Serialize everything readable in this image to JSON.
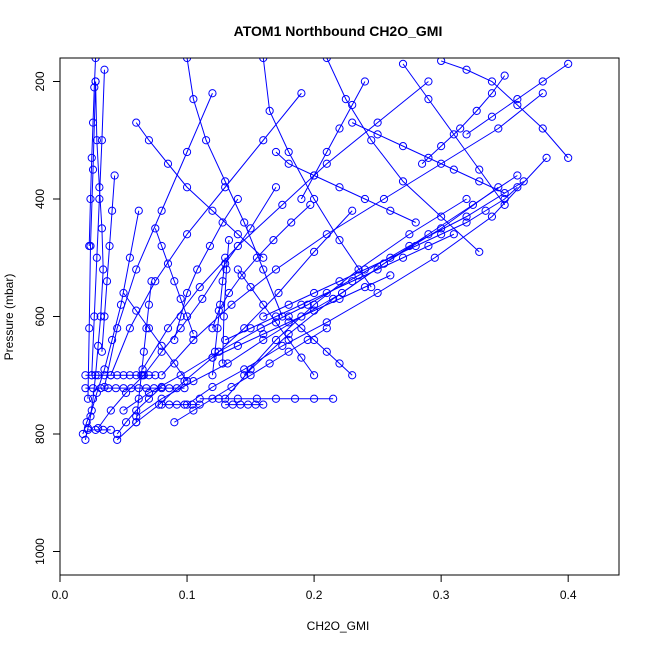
{
  "chart_data": {
    "type": "scatter",
    "title": "ATOM1 Northbound CH2O_GMI",
    "xlabel": "CH2O_GMI",
    "ylabel": "Pressure (mbar)",
    "xlim": [
      0,
      0.44
    ],
    "ylim": [
      1040,
      160
    ],
    "y_reversed": true,
    "grid": false,
    "legend": "none",
    "x_ticks": [
      "0.0",
      "0.1",
      "0.2",
      "0.3",
      "0.4"
    ],
    "x_tick_values": [
      0,
      0.1,
      0.2,
      0.3,
      0.4
    ],
    "y_ticks": [
      "200",
      "400",
      "600",
      "800",
      "1000"
    ],
    "y_tick_values": [
      200,
      400,
      600,
      800,
      1000
    ],
    "series_color": "#0000ff",
    "marker": "open-circle",
    "series": [
      {
        "x": [
          0.02,
          0.022,
          0.024,
          0.026,
          0.028,
          0.03,
          0.032,
          0.034,
          0.033,
          0.031,
          0.029,
          0.028
        ],
        "y": [
          810,
          790,
          770,
          740,
          700,
          650,
          600,
          520,
          450,
          380,
          300,
          200
        ]
      },
      {
        "x": [
          0.018,
          0.021,
          0.025,
          0.029,
          0.035,
          0.041,
          0.048,
          0.055,
          0.062
        ],
        "y": [
          800,
          780,
          760,
          730,
          690,
          640,
          580,
          500,
          420
        ]
      },
      {
        "x": [
          0.03,
          0.04,
          0.052,
          0.066,
          0.08,
          0.095,
          0.112,
          0.13,
          0.15,
          0.17
        ],
        "y": [
          790,
          760,
          730,
          700,
          660,
          620,
          570,
          510,
          450,
          380
        ]
      },
      {
        "x": [
          0.045,
          0.06,
          0.078,
          0.098,
          0.12,
          0.145,
          0.172,
          0.2,
          0.23
        ],
        "y": [
          810,
          780,
          750,
          710,
          670,
          620,
          560,
          490,
          420
        ]
      },
      {
        "x": [
          0.06,
          0.08,
          0.105,
          0.132,
          0.16,
          0.19,
          0.222,
          0.255,
          0.29,
          0.325,
          0.36
        ],
        "y": [
          770,
          740,
          710,
          680,
          640,
          600,
          560,
          510,
          460,
          410,
          360
        ]
      },
      {
        "x": [
          0.05,
          0.07,
          0.095,
          0.125,
          0.158,
          0.195,
          0.235,
          0.275,
          0.32,
          0.365
        ],
        "y": [
          760,
          730,
          700,
          660,
          620,
          580,
          530,
          480,
          430,
          370
        ]
      },
      {
        "x": [
          0.1,
          0.12,
          0.145,
          0.175,
          0.21,
          0.25,
          0.295,
          0.34,
          0.383
        ],
        "y": [
          750,
          720,
          690,
          650,
          610,
          560,
          500,
          430,
          330
        ]
      },
      {
        "x": [
          0.025,
          0.027,
          0.029,
          0.031,
          0.033,
          0.035
        ],
        "y": [
          700,
          600,
          500,
          400,
          300,
          180
        ]
      },
      {
        "x": [
          0.022,
          0.023,
          0.024,
          0.026,
          0.028
        ],
        "y": [
          740,
          620,
          480,
          350,
          200
        ]
      },
      {
        "x": [
          0.035,
          0.045,
          0.06,
          0.08,
          0.1,
          0.12
        ],
        "y": [
          720,
          620,
          520,
          420,
          320,
          220
        ]
      },
      {
        "x": [
          0.04,
          0.055,
          0.075,
          0.1,
          0.13,
          0.16,
          0.19
        ],
        "y": [
          700,
          620,
          540,
          460,
          380,
          300,
          220
        ]
      },
      {
        "x": [
          0.065,
          0.085,
          0.11,
          0.14,
          0.175,
          0.21,
          0.25,
          0.29
        ],
        "y": [
          690,
          620,
          550,
          480,
          410,
          340,
          270,
          200
        ]
      },
      {
        "x": [
          0.08,
          0.105,
          0.135,
          0.17,
          0.21,
          0.255,
          0.3,
          0.345,
          0.38
        ],
        "y": [
          700,
          640,
          580,
          520,
          460,
          400,
          340,
          280,
          220
        ]
      },
      {
        "x": [
          0.13,
          0.15,
          0.18,
          0.215,
          0.255,
          0.3,
          0.345
        ],
        "y": [
          740,
          690,
          630,
          570,
          510,
          450,
          380
        ]
      },
      {
        "x": [
          0.145,
          0.17,
          0.2,
          0.235,
          0.275,
          0.32
        ],
        "y": [
          700,
          640,
          580,
          520,
          460,
          400
        ]
      },
      {
        "x": [
          0.11,
          0.125,
          0.14,
          0.155,
          0.17,
          0.185,
          0.2,
          0.215
        ],
        "y": [
          740,
          740,
          740,
          740,
          740,
          740,
          740,
          740
        ]
      },
      {
        "x": [
          0.02,
          0.025,
          0.03,
          0.035,
          0.04,
          0.045,
          0.05,
          0.055,
          0.06,
          0.065,
          0.07,
          0.075
        ],
        "y": [
          700,
          700,
          700,
          700,
          700,
          700,
          700,
          700,
          700,
          700,
          700,
          700
        ]
      },
      {
        "x": [
          0.02,
          0.026,
          0.032,
          0.038,
          0.044,
          0.05,
          0.056,
          0.062,
          0.068,
          0.074,
          0.08,
          0.086,
          0.092,
          0.098
        ],
        "y": [
          722,
          722,
          722,
          722,
          722,
          722,
          722,
          722,
          722,
          722,
          722,
          722,
          722,
          722
        ]
      },
      {
        "x": [
          0.08,
          0.086,
          0.092,
          0.098,
          0.104,
          0.11
        ],
        "y": [
          750,
          750,
          750,
          750,
          750,
          750
        ]
      },
      {
        "x": [
          0.13,
          0.136,
          0.142,
          0.148,
          0.154,
          0.16
        ],
        "y": [
          750,
          750,
          750,
          750,
          750,
          750
        ]
      },
      {
        "x": [
          0.022,
          0.028,
          0.034,
          0.04
        ],
        "y": [
          793,
          793,
          793,
          793
        ]
      },
      {
        "x": [
          0.028,
          0.027,
          0.026,
          0.025,
          0.024,
          0.023
        ],
        "y": [
          160,
          210,
          270,
          330,
          400,
          480
        ]
      },
      {
        "x": [
          0.1,
          0.105,
          0.115,
          0.13,
          0.145,
          0.16,
          0.175
        ],
        "y": [
          160,
          230,
          300,
          370,
          440,
          520,
          600
        ]
      },
      {
        "x": [
          0.16,
          0.165,
          0.18,
          0.2,
          0.22,
          0.245
        ],
        "y": [
          160,
          250,
          320,
          400,
          470,
          550
        ]
      },
      {
        "x": [
          0.21,
          0.225,
          0.245,
          0.27,
          0.3,
          0.33
        ],
        "y": [
          160,
          230,
          300,
          370,
          430,
          490
        ]
      },
      {
        "x": [
          0.27,
          0.29,
          0.31,
          0.33,
          0.35
        ],
        "y": [
          170,
          230,
          290,
          350,
          410
        ]
      },
      {
        "x": [
          0.3,
          0.32,
          0.34,
          0.36,
          0.38,
          0.4
        ],
        "y": [
          165,
          180,
          200,
          240,
          280,
          330
        ]
      },
      {
        "x": [
          0.23,
          0.25,
          0.27,
          0.29,
          0.31,
          0.33,
          0.35
        ],
        "y": [
          270,
          290,
          310,
          330,
          350,
          370,
          390
        ]
      },
      {
        "x": [
          0.17,
          0.18,
          0.2,
          0.22,
          0.24,
          0.26,
          0.28
        ],
        "y": [
          320,
          340,
          360,
          380,
          400,
          420,
          440
        ]
      },
      {
        "x": [
          0.06,
          0.07,
          0.085,
          0.1,
          0.12,
          0.14,
          0.16
        ],
        "y": [
          270,
          300,
          340,
          380,
          420,
          460,
          500
        ]
      },
      {
        "x": [
          0.05,
          0.06,
          0.07,
          0.08,
          0.09,
          0.1
        ],
        "y": [
          560,
          590,
          620,
          650,
          680,
          710
        ]
      },
      {
        "x": [
          0.045,
          0.052,
          0.06,
          0.07,
          0.08
        ],
        "y": [
          800,
          780,
          760,
          740,
          720
        ]
      },
      {
        "x": [
          0.133,
          0.131,
          0.129,
          0.128
        ],
        "y": [
          470,
          520,
          600,
          680
        ]
      },
      {
        "x": [
          0.36,
          0.35,
          0.335,
          0.32,
          0.3,
          0.28,
          0.26,
          0.24,
          0.22,
          0.2,
          0.18,
          0.16
        ],
        "y": [
          380,
          400,
          420,
          440,
          460,
          480,
          500,
          520,
          540,
          560,
          580,
          600
        ]
      },
      {
        "x": [
          0.31,
          0.29,
          0.27,
          0.25,
          0.23,
          0.21,
          0.19,
          0.17,
          0.15,
          0.13
        ],
        "y": [
          460,
          480,
          500,
          520,
          540,
          560,
          580,
          600,
          620,
          640
        ]
      },
      {
        "x": [
          0.26,
          0.24,
          0.22,
          0.2,
          0.18,
          0.16,
          0.14,
          0.12
        ],
        "y": [
          530,
          550,
          570,
          590,
          610,
          630,
          650,
          670
        ]
      },
      {
        "x": [
          0.21,
          0.195,
          0.18,
          0.165,
          0.15,
          0.135,
          0.12,
          0.105,
          0.09
        ],
        "y": [
          620,
          640,
          660,
          680,
          700,
          720,
          740,
          760,
          780
        ]
      },
      {
        "x": [
          0.06,
          0.062,
          0.064,
          0.066,
          0.068,
          0.07,
          0.072
        ],
        "y": [
          780,
          740,
          700,
          660,
          620,
          580,
          540
        ]
      },
      {
        "x": [
          0.033,
          0.035,
          0.037,
          0.039,
          0.041,
          0.043
        ],
        "y": [
          660,
          600,
          540,
          480,
          420,
          360
        ]
      },
      {
        "x": [
          0.09,
          0.095,
          0.1,
          0.108,
          0.118,
          0.128,
          0.14
        ],
        "y": [
          640,
          600,
          560,
          520,
          480,
          440,
          400
        ]
      },
      {
        "x": [
          0.12,
          0.125,
          0.133,
          0.143,
          0.155,
          0.168,
          0.182,
          0.197
        ],
        "y": [
          620,
          590,
          560,
          530,
          500,
          470,
          440,
          410
        ]
      },
      {
        "x": [
          0.24,
          0.23,
          0.22,
          0.21,
          0.2,
          0.19
        ],
        "y": [
          200,
          240,
          280,
          320,
          360,
          400
        ]
      },
      {
        "x": [
          0.35,
          0.34,
          0.328,
          0.315,
          0.3,
          0.285
        ],
        "y": [
          190,
          220,
          250,
          280,
          310,
          340
        ]
      },
      {
        "x": [
          0.4,
          0.38,
          0.36,
          0.34,
          0.32
        ],
        "y": [
          170,
          200,
          230,
          260,
          290
        ]
      },
      {
        "x": [
          0.075,
          0.08,
          0.085,
          0.09,
          0.095,
          0.1,
          0.105
        ],
        "y": [
          450,
          480,
          510,
          540,
          570,
          600,
          630
        ]
      },
      {
        "x": [
          0.14,
          0.15,
          0.16,
          0.17,
          0.18,
          0.19,
          0.2
        ],
        "y": [
          520,
          550,
          580,
          610,
          640,
          670,
          700
        ]
      },
      {
        "x": [
          0.18,
          0.19,
          0.2,
          0.21,
          0.22,
          0.23
        ],
        "y": [
          600,
          620,
          640,
          660,
          680,
          700
        ]
      },
      {
        "x": [
          0.12,
          0.122,
          0.124,
          0.126,
          0.128,
          0.13
        ],
        "y": [
          700,
          660,
          620,
          580,
          540,
          500
        ]
      }
    ]
  }
}
